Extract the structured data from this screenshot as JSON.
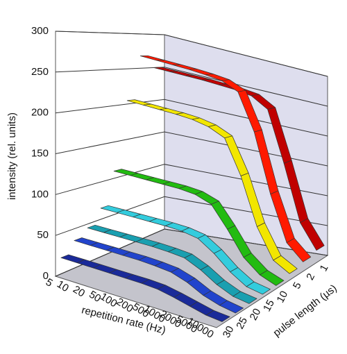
{
  "chart_data": {
    "type": "ribbon3d",
    "categories": [
      "5",
      "10",
      "20",
      "50",
      "100",
      "200",
      "500",
      "1000",
      "2000",
      "5000",
      "10000"
    ],
    "x_label": "repetition rate (Hz)",
    "y_label": "intensity (rel. units)",
    "z_label": "pulse length (µs)",
    "ylim": [
      0,
      300
    ],
    "yticks": [
      0,
      50,
      100,
      150,
      200,
      250,
      300
    ],
    "grid": true,
    "series": [
      {
        "name": "1",
        "color": "#c00000",
        "values": [
          250,
          250,
          250,
          250,
          249,
          248,
          245,
          230,
          150,
          60,
          20
        ]
      },
      {
        "name": "2",
        "color": "#ff1a00",
        "values": [
          268,
          268,
          268,
          268,
          267,
          265,
          255,
          200,
          110,
          40,
          15
        ]
      },
      {
        "name": "5",
        "color": "#f2e600",
        "values": [
          205,
          205,
          205,
          205,
          204,
          200,
          190,
          140,
          70,
          25,
          10
        ]
      },
      {
        "name": "10",
        "color": "#22bb11",
        "values": [
          110,
          110,
          110,
          110,
          110,
          108,
          100,
          70,
          35,
          15,
          5
        ]
      },
      {
        "name": "15",
        "color": "#33ccdd",
        "values": [
          65,
          65,
          65,
          65,
          65,
          64,
          60,
          45,
          25,
          10,
          5
        ]
      },
      {
        "name": "20",
        "color": "#1a9fb0",
        "values": [
          45,
          45,
          45,
          45,
          45,
          44,
          42,
          32,
          18,
          8,
          4
        ]
      },
      {
        "name": "25",
        "color": "#2244cc",
        "values": [
          35,
          35,
          35,
          35,
          35,
          34,
          32,
          25,
          14,
          7,
          3
        ]
      },
      {
        "name": "30",
        "color": "#1a2a99",
        "values": [
          20,
          20,
          20,
          20,
          20,
          20,
          19,
          15,
          10,
          5,
          3
        ]
      }
    ]
  }
}
